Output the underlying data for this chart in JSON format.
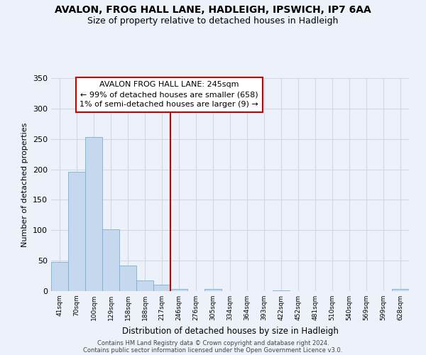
{
  "title": "AVALON, FROG HALL LANE, HADLEIGH, IPSWICH, IP7 6AA",
  "subtitle": "Size of property relative to detached houses in Hadleigh",
  "xlabel": "Distribution of detached houses by size in Hadleigh",
  "ylabel": "Number of detached properties",
  "bin_labels": [
    "41sqm",
    "70sqm",
    "100sqm",
    "129sqm",
    "158sqm",
    "188sqm",
    "217sqm",
    "246sqm",
    "276sqm",
    "305sqm",
    "334sqm",
    "364sqm",
    "393sqm",
    "422sqm",
    "452sqm",
    "481sqm",
    "510sqm",
    "540sqm",
    "569sqm",
    "599sqm",
    "628sqm"
  ],
  "bar_values": [
    48,
    196,
    253,
    102,
    42,
    18,
    11,
    4,
    0,
    4,
    0,
    0,
    0,
    1,
    0,
    0,
    0,
    0,
    0,
    0,
    3
  ],
  "bar_color": "#c5d8ed",
  "bar_edge_color": "#7aafd4",
  "vline_x_index": 7,
  "vline_color": "#cc0000",
  "annotation_line1": "AVALON FROG HALL LANE: 245sqm",
  "annotation_line2": "← 99% of detached houses are smaller (658)",
  "annotation_line3": "1% of semi-detached houses are larger (9) →",
  "annotation_box_color": "#ffffff",
  "annotation_box_edge": "#cc0000",
  "ylim": [
    0,
    350
  ],
  "yticks": [
    0,
    50,
    100,
    150,
    200,
    250,
    300,
    350
  ],
  "footer1": "Contains HM Land Registry data © Crown copyright and database right 2024.",
  "footer2": "Contains public sector information licensed under the Open Government Licence v3.0.",
  "bg_color": "#edf1f9",
  "grid_color": "#d0d8e8",
  "title_fontsize": 10,
  "subtitle_fontsize": 9
}
